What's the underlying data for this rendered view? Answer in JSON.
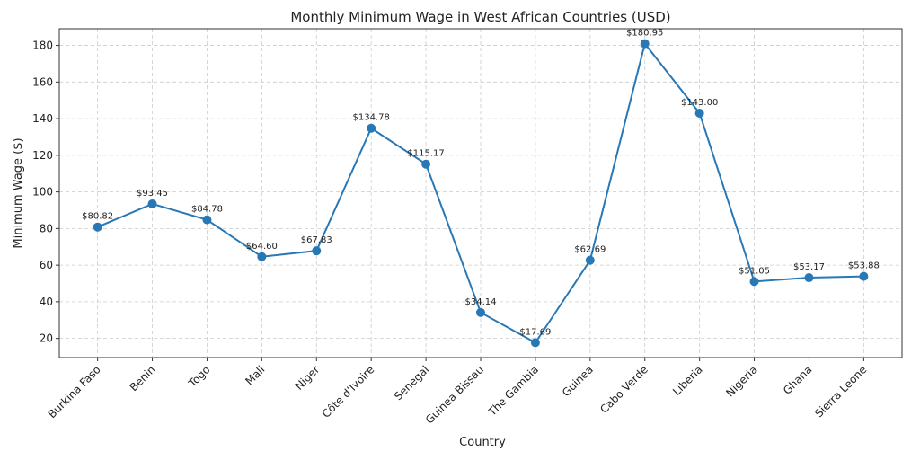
{
  "chart_data": {
    "type": "line",
    "title": "Monthly Minimum Wage in West African Countries (USD)",
    "x_label": "Country",
    "y_label": "Minimum Wage ($)",
    "categories": [
      "Burkina Faso",
      "Benin",
      "Togo",
      "Mali",
      "Niger",
      "Côte d'Ivoire",
      "Senegal",
      "Guinea Bissau",
      "The Gambia",
      "Guinea",
      "Cabo Verde",
      "Liberia",
      "Nigeria",
      "Ghana",
      "Sierra Leone"
    ],
    "series": [
      {
        "name": "Minimum Wage",
        "color": "#2878b5",
        "values": [
          80.82,
          93.45,
          84.78,
          64.6,
          67.83,
          134.78,
          115.17,
          34.14,
          17.69,
          62.69,
          180.95,
          143.0,
          51.05,
          53.17,
          53.88
        ],
        "value_labels": [
          "$80.82",
          "$93.45",
          "$84.78",
          "$64.60",
          "$67.83",
          "$134.78",
          "$115.17",
          "$34.14",
          "$17.69",
          "$62.69",
          "$180.95",
          "$143.00",
          "$51.05",
          "$53.17",
          "$53.88"
        ]
      }
    ],
    "ylim": [
      9.53,
      189.11
    ],
    "yticks": [
      20,
      40,
      60,
      80,
      100,
      120,
      140,
      160,
      180
    ],
    "grid": true
  }
}
